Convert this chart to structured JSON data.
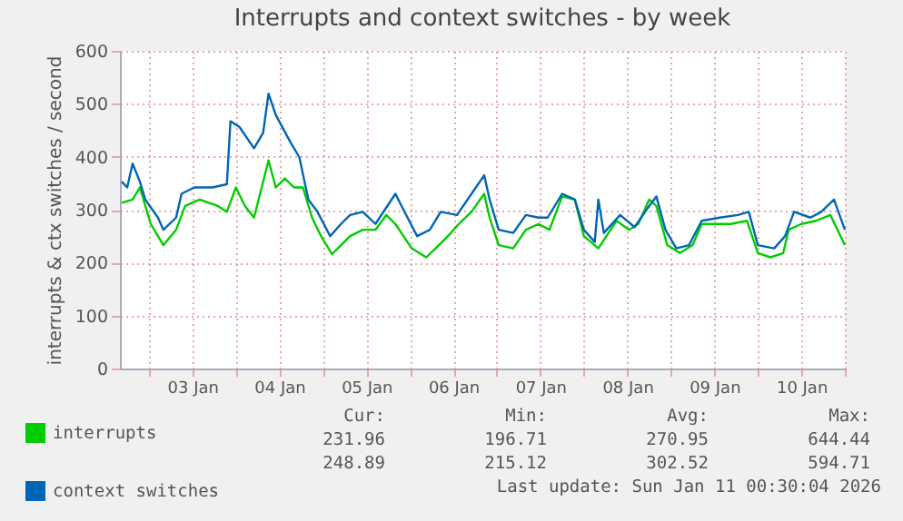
{
  "chart_data": {
    "type": "line",
    "title": "Interrupts and context switches - by week",
    "ylabel": "interrupts & ctx switches / second",
    "xlim": [
      "2026-01-02T16:00",
      "2026-01-11T00:00"
    ],
    "ylim": [
      0,
      600
    ],
    "yticks": [
      0,
      100,
      200,
      300,
      400,
      500,
      600
    ],
    "xticks": [
      {
        "value": "2026-01-03T00:00",
        "label": null
      },
      {
        "value": "2026-01-03T12:00",
        "label": "03 Jan"
      },
      {
        "value": "2026-01-04T00:00",
        "label": null
      },
      {
        "value": "2026-01-04T12:00",
        "label": "04 Jan"
      },
      {
        "value": "2026-01-05T00:00",
        "label": null
      },
      {
        "value": "2026-01-05T12:00",
        "label": "05 Jan"
      },
      {
        "value": "2026-01-06T00:00",
        "label": null
      },
      {
        "value": "2026-01-06T12:00",
        "label": "06 Jan"
      },
      {
        "value": "2026-01-07T00:00",
        "label": null
      },
      {
        "value": "2026-01-07T12:00",
        "label": "07 Jan"
      },
      {
        "value": "2026-01-08T00:00",
        "label": null
      },
      {
        "value": "2026-01-08T12:00",
        "label": "08 Jan"
      },
      {
        "value": "2026-01-09T00:00",
        "label": null
      },
      {
        "value": "2026-01-09T12:00",
        "label": "09 Jan"
      },
      {
        "value": "2026-01-10T00:00",
        "label": null
      },
      {
        "value": "2026-01-10T12:00",
        "label": "10 Jan"
      },
      {
        "value": "2026-01-11T00:00",
        "label": null
      }
    ],
    "grid": true,
    "legend": "bottom",
    "marker": "none",
    "line_style": "solid",
    "series": [
      {
        "name": "interrupts",
        "color": "#00cc00",
        "x": [
          "2026-01-02T16:30",
          "2026-01-02T19:30",
          "2026-01-02T21:30",
          "2026-01-03T00:30",
          "2026-01-03T04:00",
          "2026-01-03T07:30",
          "2026-01-03T10:00",
          "2026-01-03T14:00",
          "2026-01-03T19:00",
          "2026-01-03T21:30",
          "2026-01-04T00:00",
          "2026-01-04T02:30",
          "2026-01-04T05:00",
          "2026-01-04T09:00",
          "2026-01-04T11:00",
          "2026-01-04T13:30",
          "2026-01-04T16:00",
          "2026-01-04T18:30",
          "2026-01-04T21:00",
          "2026-01-04T23:30",
          "2026-01-05T02:30",
          "2026-01-05T05:00",
          "2026-01-05T07:30",
          "2026-01-05T11:00",
          "2026-01-05T14:30",
          "2026-01-05T17:30",
          "2026-01-05T20:00",
          "2026-01-06T00:30",
          "2026-01-06T04:30",
          "2026-01-06T08:00",
          "2026-01-06T10:30",
          "2026-01-06T13:30",
          "2026-01-06T17:00",
          "2026-01-06T20:30",
          "2026-01-06T22:00",
          "2026-01-07T00:30",
          "2026-01-07T04:30",
          "2026-01-07T08:00",
          "2026-01-07T11:30",
          "2026-01-07T14:30",
          "2026-01-07T18:00",
          "2026-01-07T21:30",
          "2026-01-08T00:00",
          "2026-01-08T04:00",
          "2026-01-08T09:00",
          "2026-01-08T12:30",
          "2026-01-08T15:00",
          "2026-01-08T18:00",
          "2026-01-08T20:00",
          "2026-01-08T23:00",
          "2026-01-09T02:30",
          "2026-01-09T06:00",
          "2026-01-09T08:30",
          "2026-01-09T11:30",
          "2026-01-09T16:30",
          "2026-01-09T21:00",
          "2026-01-10T00:00",
          "2026-01-10T03:30",
          "2026-01-10T07:00",
          "2026-01-10T08:30",
          "2026-01-10T12:00",
          "2026-01-10T16:00",
          "2026-01-10T20:00",
          "2026-01-11T00:00"
        ],
        "values": [
          313,
          319,
          342,
          273,
          233,
          262,
          307,
          319,
          307,
          296,
          342,
          307,
          285,
          393,
          342,
          359,
          342,
          342,
          285,
          250,
          216,
          233,
          250,
          262,
          262,
          290,
          273,
          227,
          210,
          233,
          250,
          273,
          296,
          330,
          285,
          233,
          227,
          262,
          273,
          262,
          325,
          319,
          250,
          227,
          279,
          262,
          273,
          319,
          307,
          233,
          218,
          233,
          273,
          273,
          273,
          279,
          218,
          210,
          218,
          262,
          273,
          279,
          290,
          233
        ]
      },
      {
        "name": "context switches",
        "color": "#0066b3",
        "x": [
          "2026-01-02T16:30",
          "2026-01-02T18:00",
          "2026-01-02T19:30",
          "2026-01-02T21:30",
          "2026-01-02T23:00",
          "2026-01-03T02:30",
          "2026-01-03T04:00",
          "2026-01-03T07:30",
          "2026-01-03T09:00",
          "2026-01-03T12:30",
          "2026-01-03T17:30",
          "2026-01-03T21:30",
          "2026-01-03T22:30",
          "2026-01-04T01:00",
          "2026-01-04T05:00",
          "2026-01-04T07:30",
          "2026-01-04T09:00",
          "2026-01-04T11:00",
          "2026-01-04T15:00",
          "2026-01-04T17:30",
          "2026-01-04T20:00",
          "2026-01-04T22:30",
          "2026-01-05T02:00",
          "2026-01-05T05:00",
          "2026-01-05T07:30",
          "2026-01-05T11:00",
          "2026-01-05T14:30",
          "2026-01-05T20:00",
          "2026-01-05T22:30",
          "2026-01-06T02:00",
          "2026-01-06T05:30",
          "2026-01-06T08:30",
          "2026-01-06T13:00",
          "2026-01-06T17:00",
          "2026-01-06T20:30",
          "2026-01-06T22:00",
          "2026-01-07T00:30",
          "2026-01-07T04:30",
          "2026-01-07T08:00",
          "2026-01-07T11:30",
          "2026-01-07T14:00",
          "2026-01-07T18:00",
          "2026-01-07T21:30",
          "2026-01-08T00:00",
          "2026-01-08T03:00",
          "2026-01-08T04:00",
          "2026-01-08T05:30",
          "2026-01-08T10:00",
          "2026-01-08T14:00",
          "2026-01-08T17:30",
          "2026-01-08T20:00",
          "2026-01-08T22:30",
          "2026-01-09T01:30",
          "2026-01-09T05:00",
          "2026-01-09T08:30",
          "2026-01-09T13:30",
          "2026-01-09T18:30",
          "2026-01-09T21:30",
          "2026-01-10T00:00",
          "2026-01-10T04:30",
          "2026-01-10T07:30",
          "2026-01-10T10:00",
          "2026-01-10T14:30",
          "2026-01-10T17:30",
          "2026-01-10T21:00",
          "2026-01-11T00:00"
        ],
        "values": [
          353,
          342,
          387,
          353,
          319,
          285,
          262,
          285,
          330,
          342,
          342,
          348,
          467,
          456,
          416,
          445,
          519,
          479,
          428,
          399,
          319,
          296,
          250,
          273,
          290,
          296,
          273,
          330,
          296,
          250,
          262,
          296,
          290,
          330,
          365,
          319,
          262,
          256,
          290,
          285,
          285,
          330,
          319,
          262,
          239,
          319,
          256,
          290,
          267,
          302,
          325,
          262,
          227,
          233,
          279,
          285,
          290,
          296,
          233,
          227,
          250,
          296,
          285,
          296,
          319,
          262
        ]
      }
    ],
    "annotations": [
      "Cur:",
      "Min:",
      "Avg:",
      "Max:",
      "231.96",
      "196.71",
      "270.95",
      "644.44",
      "248.89",
      "215.12",
      "302.52",
      "594.71",
      "Last update: Sun Jan 11 00:30:04 2026"
    ]
  }
}
